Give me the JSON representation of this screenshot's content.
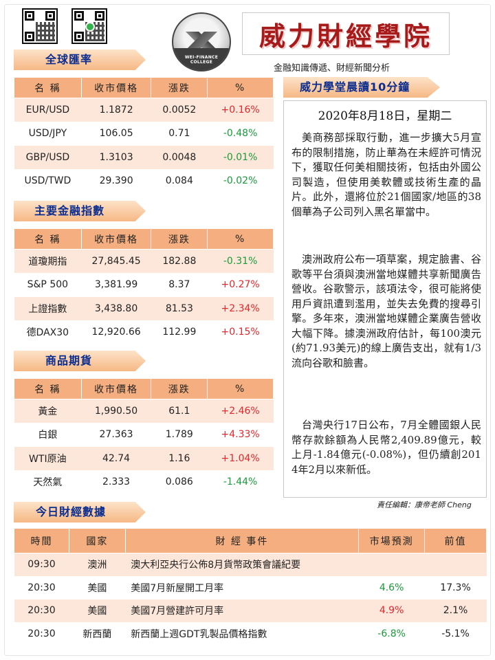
{
  "header": {
    "brand": "威力財經學院",
    "tagline": "金融知識傳遞、財經新聞分析",
    "logo_text": "WEI-FINANCE COLLEGE"
  },
  "sections": {
    "fx": "全球匯率",
    "indices": "主要金融指數",
    "commodities": "商品期貨",
    "calendar": "今日財經數據",
    "reading": "威力學堂晨讀10分鐘"
  },
  "market_headers": [
    "名 稱",
    "收市價格",
    "漲跌",
    "%"
  ],
  "fx": [
    {
      "name": "EUR/USD",
      "close": "1.1872",
      "change": "0.0052",
      "pct": "+0.16%",
      "dir": "up"
    },
    {
      "name": "USD/JPY",
      "close": "106.05",
      "change": "0.71",
      "pct": "-0.48%",
      "dir": "down"
    },
    {
      "name": "GBP/USD",
      "close": "1.3103",
      "change": "0.0048",
      "pct": "-0.01%",
      "dir": "down"
    },
    {
      "name": "USD/TWD",
      "close": "29.390",
      "change": "0.084",
      "pct": "-0.02%",
      "dir": "down"
    }
  ],
  "indices": [
    {
      "name": "道瓊期指",
      "close": "27,845.45",
      "change": "182.88",
      "pct": "-0.31%",
      "dir": "down"
    },
    {
      "name": "S&P 500",
      "close": "3,381.99",
      "change": "8.37",
      "pct": "+0.27%",
      "dir": "up"
    },
    {
      "name": "上證指數",
      "close": "3,438.80",
      "change": "81.53",
      "pct": "+2.34%",
      "dir": "up"
    },
    {
      "name": "德DAX30",
      "close": "12,920.66",
      "change": "112.99",
      "pct": "+0.15%",
      "dir": "up"
    }
  ],
  "commodities": [
    {
      "name": "黃金",
      "close": "1,990.50",
      "change": "61.1",
      "pct": "+2.46%",
      "dir": "up"
    },
    {
      "name": "白銀",
      "close": "27.363",
      "change": "1.789",
      "pct": "+4.33%",
      "dir": "up"
    },
    {
      "name": "WTI原油",
      "close": "42.74",
      "change": "1.16",
      "pct": "+1.04%",
      "dir": "up"
    },
    {
      "name": "天然氣",
      "close": "2.333",
      "change": "0.086",
      "pct": "-1.44%",
      "dir": "down"
    }
  ],
  "article": {
    "date": "2020年8月18日，星期二",
    "paragraphs": [
      "美商務部採取行動，進一步擴大5月宣布的限制措施，防止華為在未經許可情況下，獲取任何美相關技術，包括由外國公司製造，但使用美軟體或技術生產的晶片。此外，還將位於21個國家/地區的38個華為子公司列入黑名單當中。",
      "澳洲政府公布一項草案，規定臉書、谷歌等平台須與澳洲當地媒體共享新聞廣告營收。谷歌警示，該項法令，很可能將使用戶資訊遭到濫用，並失去免費的搜尋引擎。多年來，澳洲當地媒體企業廣告營收大幅下降。據澳洲政府估計，每100澳元(約71.93美元)的線上廣告支出，就有1/3流向谷歌和臉書。",
      "台灣央行17日公布，7月全體國銀人民幣存款餘額為人民幣2,409.89億元，較上月-1.84億元(-0.08%)，但仍續創2014年2月以來新低。"
    ],
    "editor": "責任編輯：康帝老師 Cheng"
  },
  "calendar": {
    "headers": [
      "時間",
      "國家",
      "財 經 事件",
      "市場預測",
      "前值"
    ],
    "rows": [
      {
        "time": "09:30",
        "country": "澳洲",
        "event": "澳大利亞央行公佈8月貨幣政策會議紀要",
        "forecast": "",
        "forecast_dir": "",
        "previous": ""
      },
      {
        "time": "20:30",
        "country": "美國",
        "event": "美國7月新屋開工月率",
        "forecast": "4.6%",
        "forecast_dir": "down",
        "previous": "17.3%"
      },
      {
        "time": "20:30",
        "country": "美國",
        "event": "美國7月營建許可月率",
        "forecast": "4.9%",
        "forecast_dir": "up",
        "previous": "2.1%"
      },
      {
        "time": "20:30",
        "country": "新西蘭",
        "event": "新西蘭上週GDT乳製品價格指數",
        "forecast": "-6.8%",
        "forecast_dir": "down",
        "previous": "-5.1%"
      }
    ]
  },
  "colors": {
    "header_fill": "#f4ae7f",
    "row_tint": "#fde7da",
    "up": "#e0282d",
    "down": "#1a9b3a",
    "brand": "#a61a1a",
    "ribbon_text": "#0b2d8f"
  }
}
